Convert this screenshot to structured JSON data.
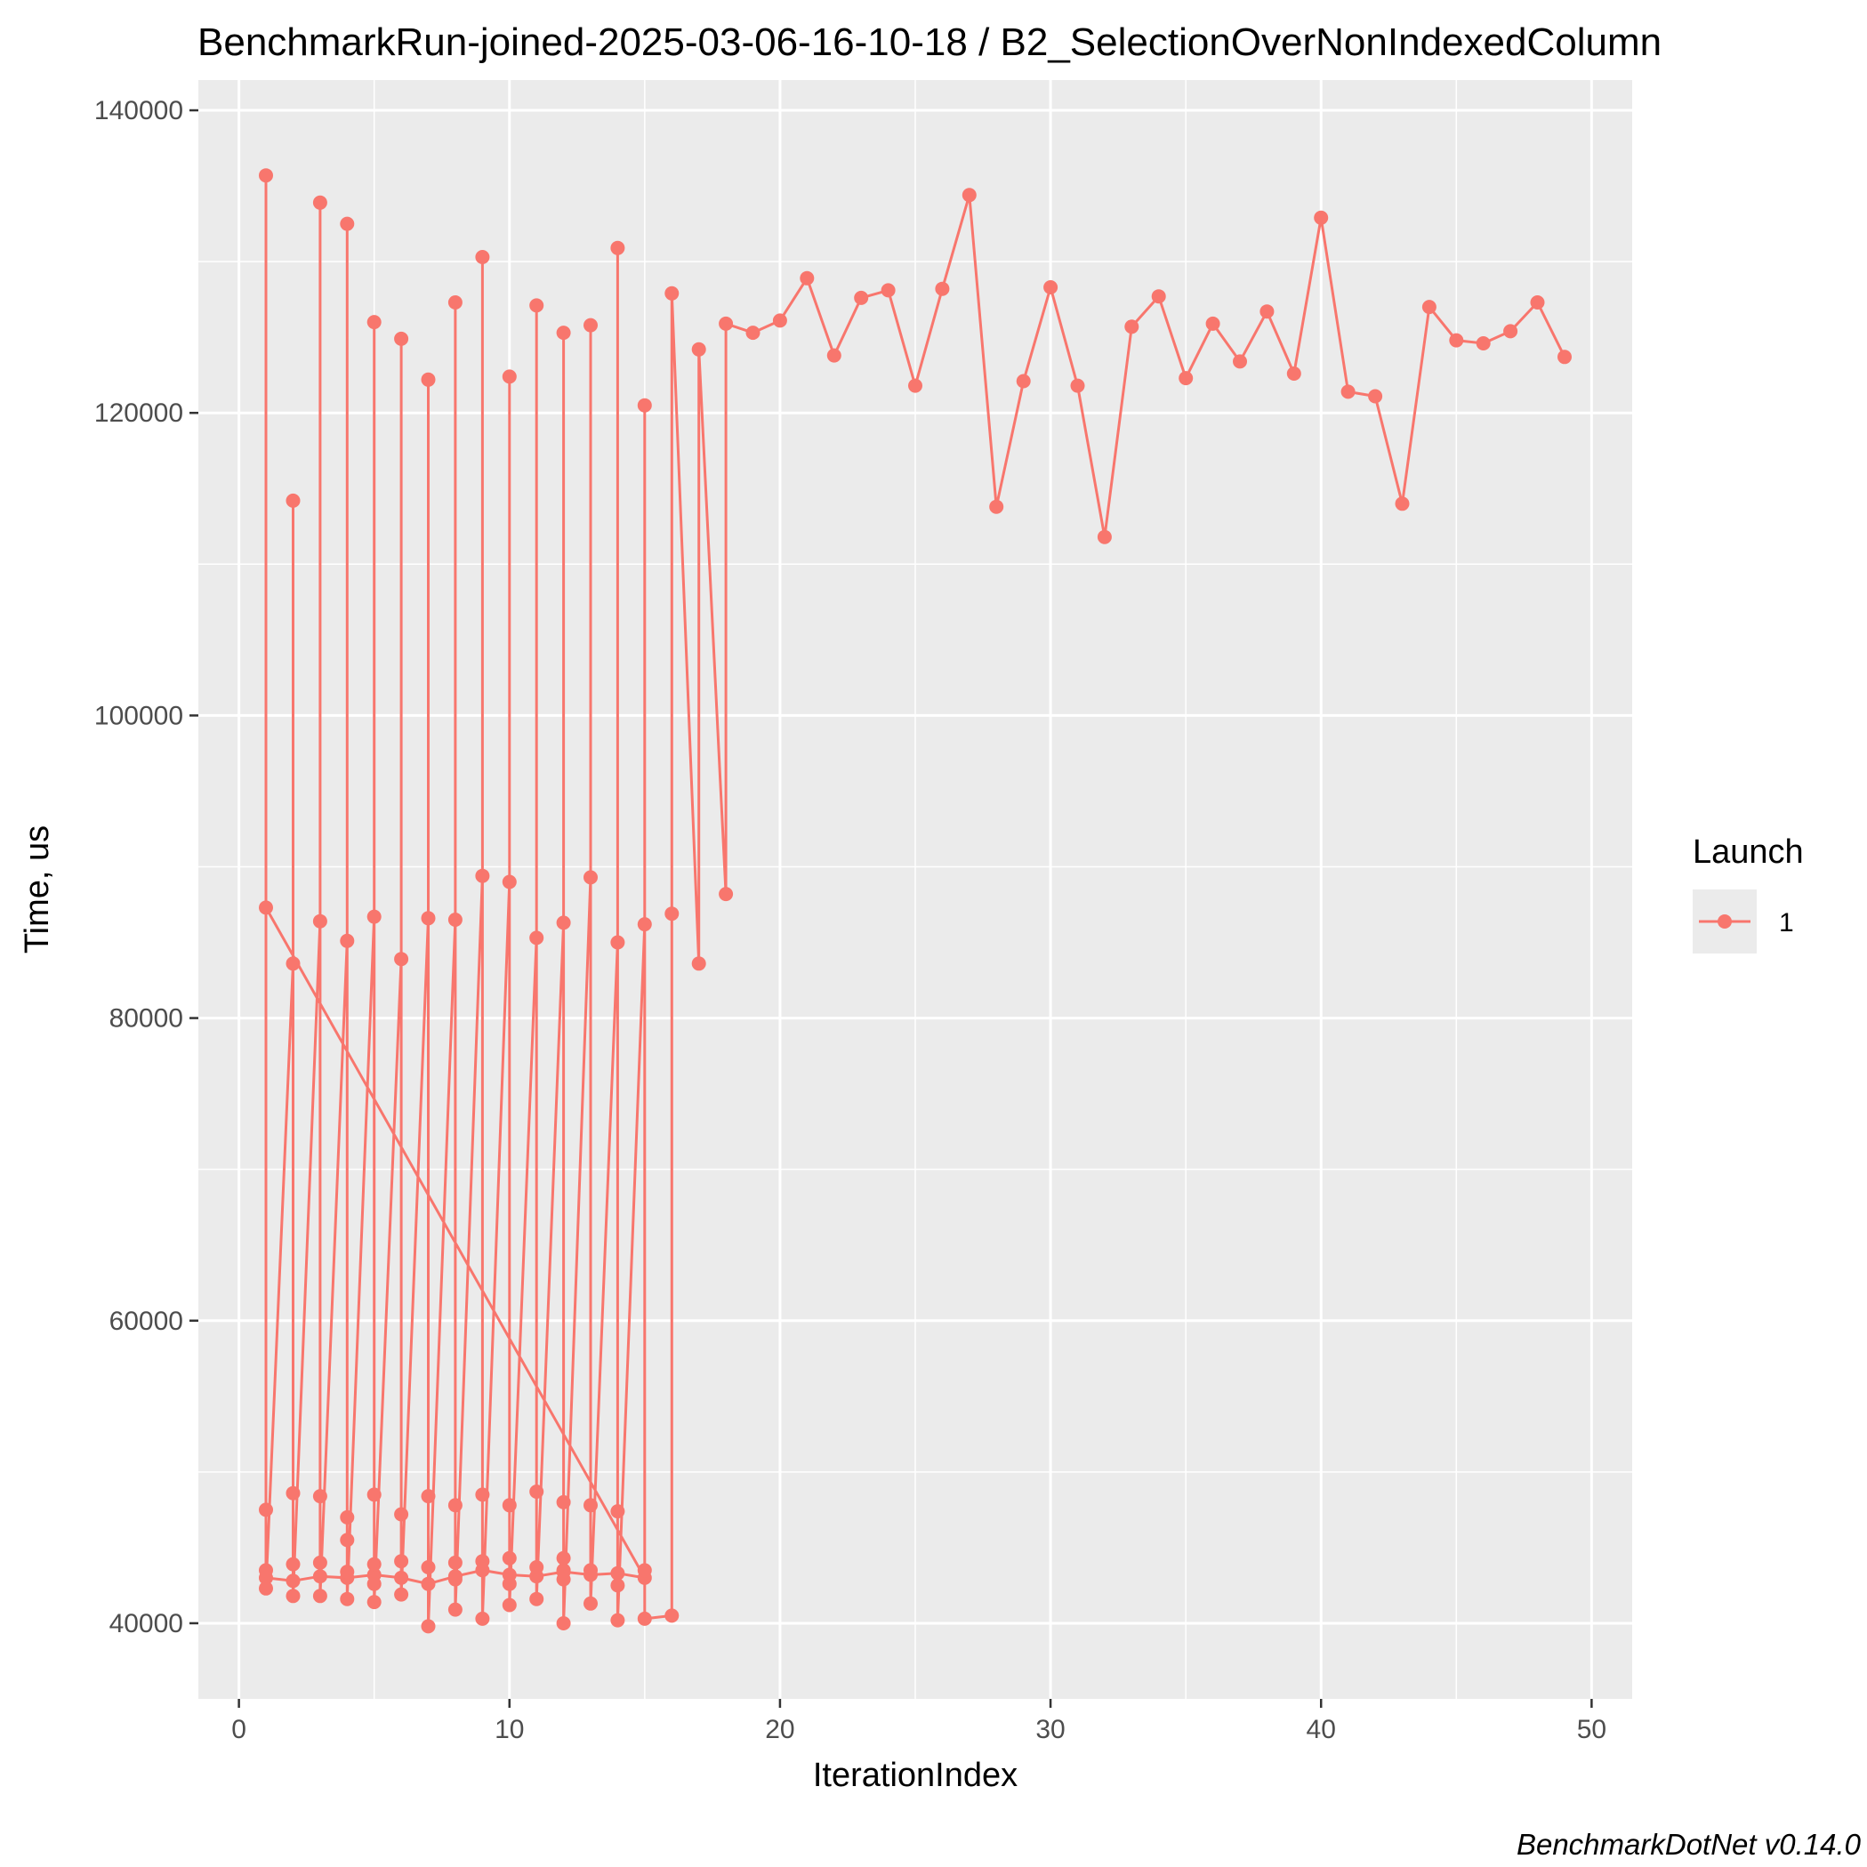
{
  "chart_data": {
    "type": "line",
    "title": "BenchmarkRun-joined-2025-03-06-16-10-18 / B2_SelectionOverNonIndexedColumn",
    "xlabel": "IterationIndex",
    "ylabel": "Time, us",
    "caption": "BenchmarkDotNet v0.14.0",
    "xlim": [
      -1.5,
      51.5
    ],
    "ylim": [
      35000,
      142000
    ],
    "x_ticks": [
      0,
      10,
      20,
      30,
      40,
      50
    ],
    "y_ticks": [
      40000,
      60000,
      80000,
      100000,
      120000,
      140000
    ],
    "x_tick_labels": [
      "0",
      "10",
      "20",
      "30",
      "40",
      "50"
    ],
    "y_tick_labels": [
      "40000",
      "60000",
      "80000",
      "100000",
      "120000",
      "140000"
    ],
    "grid": true,
    "legend": {
      "title": "Launch",
      "position": "right",
      "entries": [
        {
          "label": "1",
          "color": "#F8766D"
        }
      ]
    },
    "colors": {
      "series": "#F8766D",
      "panel": "#EBEBEB",
      "grid": "#FFFFFF"
    },
    "series": [
      {
        "name": "1",
        "points": [
          [
            1,
            43000
          ],
          [
            2,
            42800
          ],
          [
            3,
            43100
          ],
          [
            4,
            43000
          ],
          [
            5,
            43200
          ],
          [
            6,
            43000
          ],
          [
            7,
            42600
          ],
          [
            8,
            43100
          ],
          [
            9,
            43500
          ],
          [
            10,
            43200
          ],
          [
            11,
            43100
          ],
          [
            12,
            43400
          ],
          [
            13,
            43200
          ],
          [
            14,
            43300
          ],
          [
            15,
            43000
          ],
          [
            1,
            87300
          ],
          [
            1,
            135700
          ],
          [
            1,
            47500
          ],
          [
            1,
            43500
          ],
          [
            1,
            42300
          ],
          [
            2,
            83600
          ],
          [
            2,
            114200
          ],
          [
            2,
            48600
          ],
          [
            2,
            43900
          ],
          [
            2,
            41800
          ],
          [
            3,
            86400
          ],
          [
            3,
            133900
          ],
          [
            3,
            48400
          ],
          [
            3,
            44000
          ],
          [
            3,
            41800
          ],
          [
            4,
            85100
          ],
          [
            4,
            132500
          ],
          [
            4,
            47000
          ],
          [
            4,
            45500
          ],
          [
            4,
            43400
          ],
          [
            4,
            41600
          ],
          [
            5,
            86700
          ],
          [
            5,
            126000
          ],
          [
            5,
            48500
          ],
          [
            5,
            43900
          ],
          [
            5,
            42600
          ],
          [
            5,
            41400
          ],
          [
            6,
            83900
          ],
          [
            6,
            124900
          ],
          [
            6,
            47200
          ],
          [
            6,
            44100
          ],
          [
            6,
            41900
          ],
          [
            7,
            86600
          ],
          [
            7,
            122200
          ],
          [
            7,
            48400
          ],
          [
            7,
            43700
          ],
          [
            7,
            39800
          ],
          [
            8,
            86500
          ],
          [
            8,
            127300
          ],
          [
            8,
            47800
          ],
          [
            8,
            44000
          ],
          [
            8,
            42900
          ],
          [
            8,
            40900
          ],
          [
            9,
            89400
          ],
          [
            9,
            130300
          ],
          [
            9,
            48500
          ],
          [
            9,
            44100
          ],
          [
            9,
            40300
          ],
          [
            10,
            89000
          ],
          [
            10,
            122400
          ],
          [
            10,
            47800
          ],
          [
            10,
            44300
          ],
          [
            10,
            42600
          ],
          [
            10,
            41200
          ],
          [
            11,
            85300
          ],
          [
            11,
            127100
          ],
          [
            11,
            48700
          ],
          [
            11,
            43700
          ],
          [
            11,
            41600
          ],
          [
            12,
            86300
          ],
          [
            12,
            125300
          ],
          [
            12,
            48000
          ],
          [
            12,
            44300
          ],
          [
            12,
            43500
          ],
          [
            12,
            42900
          ],
          [
            12,
            40000
          ],
          [
            13,
            89300
          ],
          [
            13,
            125800
          ],
          [
            13,
            47800
          ],
          [
            13,
            43500
          ],
          [
            13,
            41300
          ],
          [
            14,
            85000
          ],
          [
            14,
            130900
          ],
          [
            14,
            47400
          ],
          [
            14,
            42500
          ],
          [
            14,
            40200
          ],
          [
            15,
            86200
          ],
          [
            15,
            120500
          ],
          [
            15,
            43500
          ],
          [
            15,
            40300
          ],
          [
            16,
            40500
          ],
          [
            16,
            86900
          ],
          [
            16,
            127900
          ],
          [
            17,
            83600
          ],
          [
            17,
            124200
          ],
          [
            18,
            88200
          ],
          [
            18,
            125900
          ],
          [
            19,
            125300
          ],
          [
            20,
            126100
          ],
          [
            21,
            128900
          ],
          [
            22,
            123800
          ],
          [
            23,
            127600
          ],
          [
            24,
            128100
          ],
          [
            25,
            121800
          ],
          [
            26,
            128200
          ],
          [
            27,
            134400
          ],
          [
            28,
            113800
          ],
          [
            29,
            122100
          ],
          [
            30,
            128300
          ],
          [
            31,
            121800
          ],
          [
            32,
            111800
          ],
          [
            33,
            125700
          ],
          [
            34,
            127700
          ],
          [
            35,
            122300
          ],
          [
            36,
            125900
          ],
          [
            37,
            123400
          ],
          [
            38,
            126700
          ],
          [
            39,
            122600
          ],
          [
            40,
            132900
          ],
          [
            41,
            121400
          ],
          [
            42,
            121100
          ],
          [
            43,
            114000
          ],
          [
            44,
            127000
          ],
          [
            45,
            124800
          ],
          [
            46,
            124600
          ],
          [
            47,
            125400
          ],
          [
            48,
            127300
          ],
          [
            49,
            123700
          ]
        ]
      }
    ]
  }
}
